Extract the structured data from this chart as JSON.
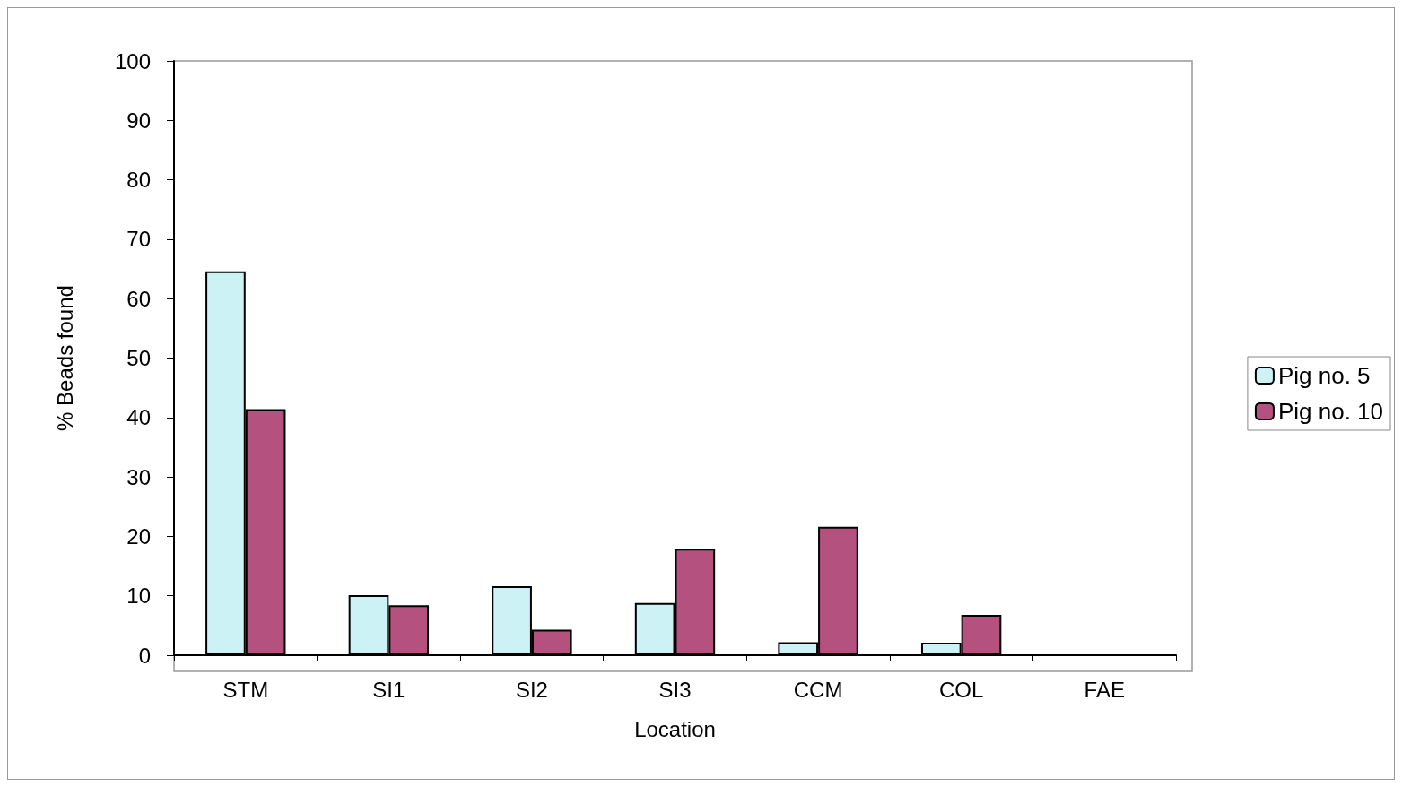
{
  "chart_data": {
    "type": "bar",
    "xlabel": "Location",
    "ylabel": "% Beads found",
    "categories": [
      "STM",
      "SI1",
      "SI2",
      "SI3",
      "CCM",
      "COL",
      "FAE"
    ],
    "series": [
      {
        "name": "Pig no. 5",
        "color": "#ccf2f5",
        "values": [
          64.6,
          10.1,
          11.6,
          8.8,
          2.2,
          2.1,
          0
        ]
      },
      {
        "name": "Pig no. 10",
        "color": "#b4517e",
        "values": [
          41.4,
          8.4,
          4.3,
          17.9,
          21.6,
          6.8,
          0
        ]
      }
    ],
    "ylim": [
      0,
      100
    ],
    "yticks": [
      0,
      10,
      20,
      30,
      40,
      50,
      60,
      70,
      80,
      90,
      100
    ],
    "grid": false,
    "legend": "right"
  }
}
